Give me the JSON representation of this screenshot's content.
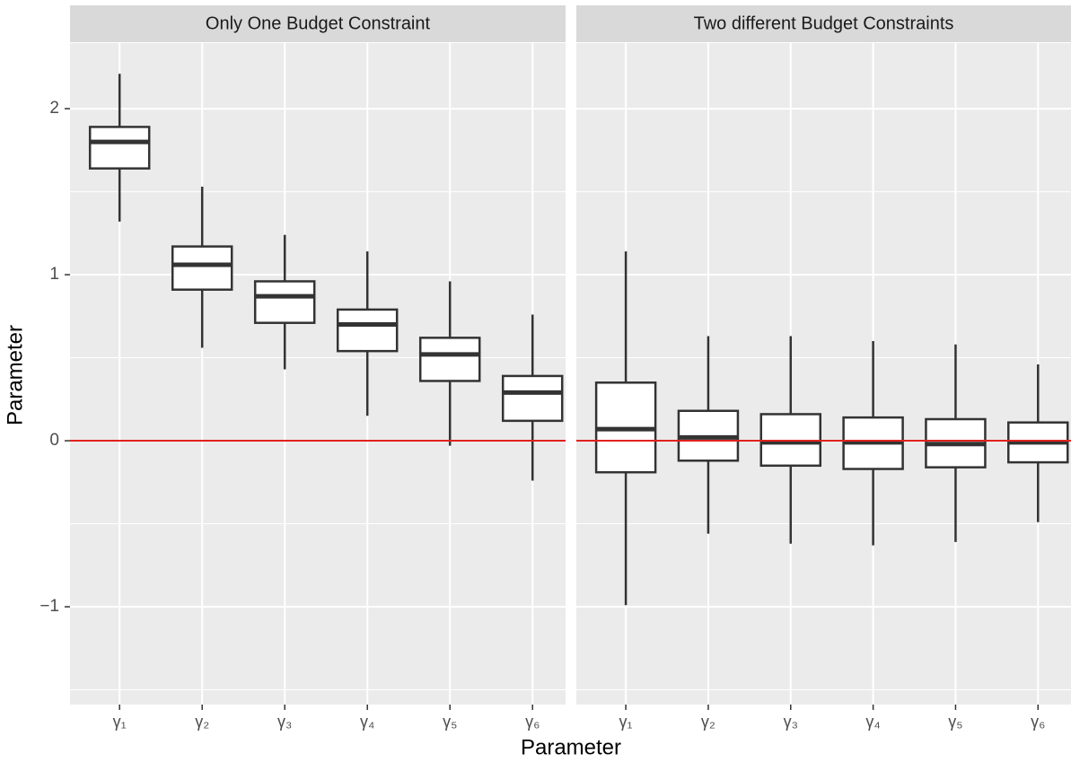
{
  "xlabel": "Parameter",
  "ylabel": "Parameter",
  "chart_data": [
    {
      "type": "box",
      "title": "Only One Budget Constraint",
      "categories": [
        "γ₁",
        "γ₂",
        "γ₃",
        "γ₄",
        "γ₅",
        "γ₆"
      ],
      "min": [
        1.32,
        0.56,
        0.43,
        0.15,
        -0.03,
        -0.24
      ],
      "q1": [
        1.64,
        0.91,
        0.71,
        0.54,
        0.36,
        0.12
      ],
      "median": [
        1.8,
        1.06,
        0.87,
        0.7,
        0.52,
        0.29
      ],
      "q3": [
        1.89,
        1.17,
        0.96,
        0.79,
        0.62,
        0.39
      ],
      "max": [
        2.21,
        1.53,
        1.24,
        1.14,
        0.96,
        0.76
      ],
      "ylim": [
        -1.589,
        2.395
      ],
      "yticks": [
        {
          "value": -1,
          "label": "−1"
        },
        0,
        1,
        2
      ],
      "minor_grid": [
        -1.5,
        -0.5,
        0.5,
        1.5
      ],
      "hline": 0,
      "hline_color": "#e3211c",
      "grid": true
    },
    {
      "type": "box",
      "title": "Two different Budget Constraints",
      "categories": [
        "γ₁",
        "γ₂",
        "γ₃",
        "γ₄",
        "γ₅",
        "γ₆"
      ],
      "min": [
        -0.99,
        -0.56,
        -0.62,
        -0.63,
        -0.61,
        -0.49
      ],
      "q1": [
        -0.19,
        -0.12,
        -0.15,
        -0.17,
        -0.16,
        -0.13
      ],
      "median": [
        0.07,
        0.02,
        -0.01,
        -0.01,
        -0.02,
        -0.01
      ],
      "q3": [
        0.35,
        0.18,
        0.16,
        0.14,
        0.13,
        0.11
      ],
      "max": [
        1.14,
        0.63,
        0.63,
        0.6,
        0.58,
        0.46
      ],
      "ylim": [
        -1.589,
        2.395
      ],
      "yticks": [
        {
          "value": -1,
          "label": "−1"
        },
        0,
        1,
        2
      ],
      "minor_grid": [
        -1.5,
        -0.5,
        0.5,
        1.5
      ],
      "hline": 0,
      "hline_color": "#e3211c",
      "grid": true
    }
  ]
}
